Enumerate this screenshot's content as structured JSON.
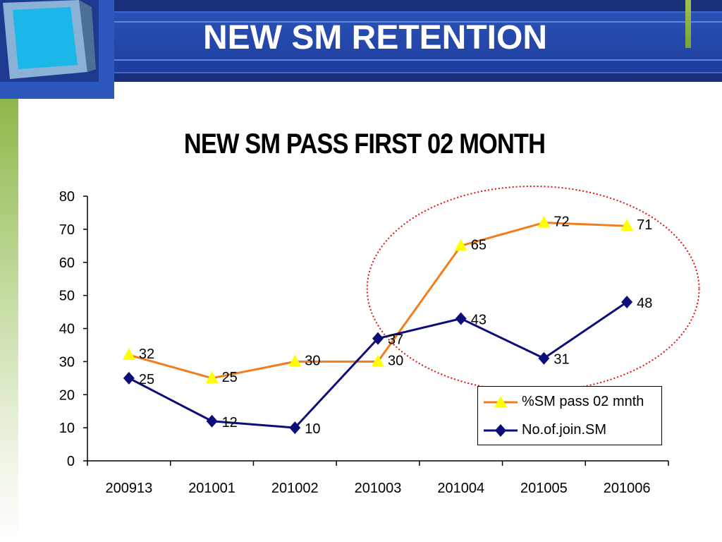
{
  "slide": {
    "title": "NEW SM RETENTION"
  },
  "chart_data": {
    "type": "line",
    "title": "NEW SM PASS FIRST 02 MONTH",
    "categories": [
      "200913",
      "201001",
      "201002",
      "201003",
      "201004",
      "201005",
      "201006"
    ],
    "ylim": [
      0,
      80
    ],
    "yticks": [
      0,
      10,
      20,
      30,
      40,
      50,
      60,
      70,
      80
    ],
    "grid": false,
    "legend_position": "bottom-right",
    "series": [
      {
        "name": "%SM pass 02 mnth",
        "values": [
          32,
          25,
          30,
          30,
          65,
          72,
          71
        ],
        "color": "#f07d1e",
        "marker": "triangle",
        "marker_color": "#ffff00"
      },
      {
        "name": "No.of.join.SM",
        "values": [
          25,
          12,
          10,
          37,
          43,
          31,
          48
        ],
        "color": "#0d0d7a",
        "marker": "diamond",
        "marker_color": "#0d0d7a"
      }
    ],
    "annotation": {
      "type": "dotted-ellipse",
      "color": "#e01010",
      "covers_categories": [
        "201003",
        "201004",
        "201005",
        "201006"
      ]
    }
  }
}
